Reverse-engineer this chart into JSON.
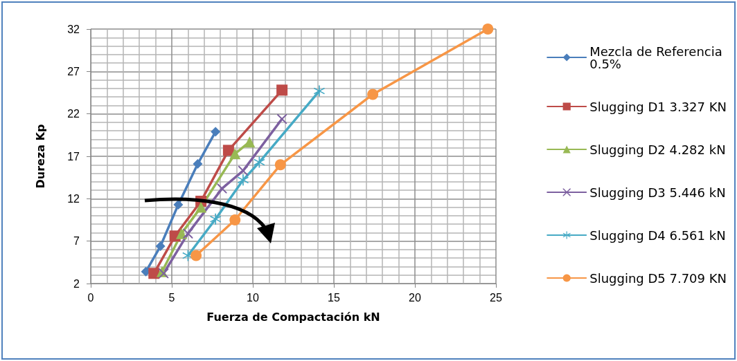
{
  "chart_data": {
    "type": "line",
    "xlabel": "Fuerza de Compactación kN",
    "ylabel": "Dureza Kp",
    "xlim": [
      0,
      25
    ],
    "xticks": [
      0,
      5,
      10,
      15,
      20,
      25
    ],
    "ylim": [
      2,
      32
    ],
    "yticks": [
      2,
      7,
      12,
      17,
      22,
      27,
      32
    ],
    "grid": true,
    "legend": "right",
    "series": [
      {
        "name": "Mezcla de Referencia 0.5%",
        "color": "#4a7ebb",
        "marker": "diamond",
        "x": [
          3.4,
          4.3,
          5.4,
          6.6,
          7.7
        ],
        "values": [
          3.4,
          6.4,
          11.3,
          16.1,
          19.9
        ]
      },
      {
        "name": "Slugging D1 3.327 KN",
        "color": "#be4b48",
        "marker": "square",
        "x": [
          3.9,
          5.2,
          6.8,
          8.5,
          11.8
        ],
        "values": [
          3.2,
          7.6,
          11.7,
          17.7,
          24.8
        ]
      },
      {
        "name": "Slugging D2 4.282 kN",
        "color": "#98b954",
        "marker": "triangle",
        "x": [
          4.4,
          5.6,
          6.8,
          8.9,
          9.8
        ],
        "values": [
          3.4,
          7.9,
          11.0,
          17.3,
          18.7
        ]
      },
      {
        "name": "Slugging D3 5.446 kN",
        "color": "#7d60a0",
        "marker": "cross",
        "x": [
          4.5,
          6.0,
          8.1,
          9.4,
          11.8
        ],
        "values": [
          3.2,
          7.9,
          13.2,
          15.3,
          21.4
        ]
      },
      {
        "name": "Slugging D4 6.561 kN",
        "color": "#46aac5",
        "marker": "star",
        "x": [
          6.0,
          7.7,
          9.4,
          10.4,
          14.1
        ],
        "values": [
          5.3,
          9.6,
          14.2,
          16.3,
          24.7
        ]
      },
      {
        "name": "Slugging D5 7.709 KN",
        "color": "#f79646",
        "marker": "circle",
        "x": [
          6.5,
          8.9,
          11.7,
          17.4,
          24.5
        ],
        "values": [
          5.3,
          9.5,
          16.0,
          24.3,
          32
        ]
      }
    ]
  }
}
